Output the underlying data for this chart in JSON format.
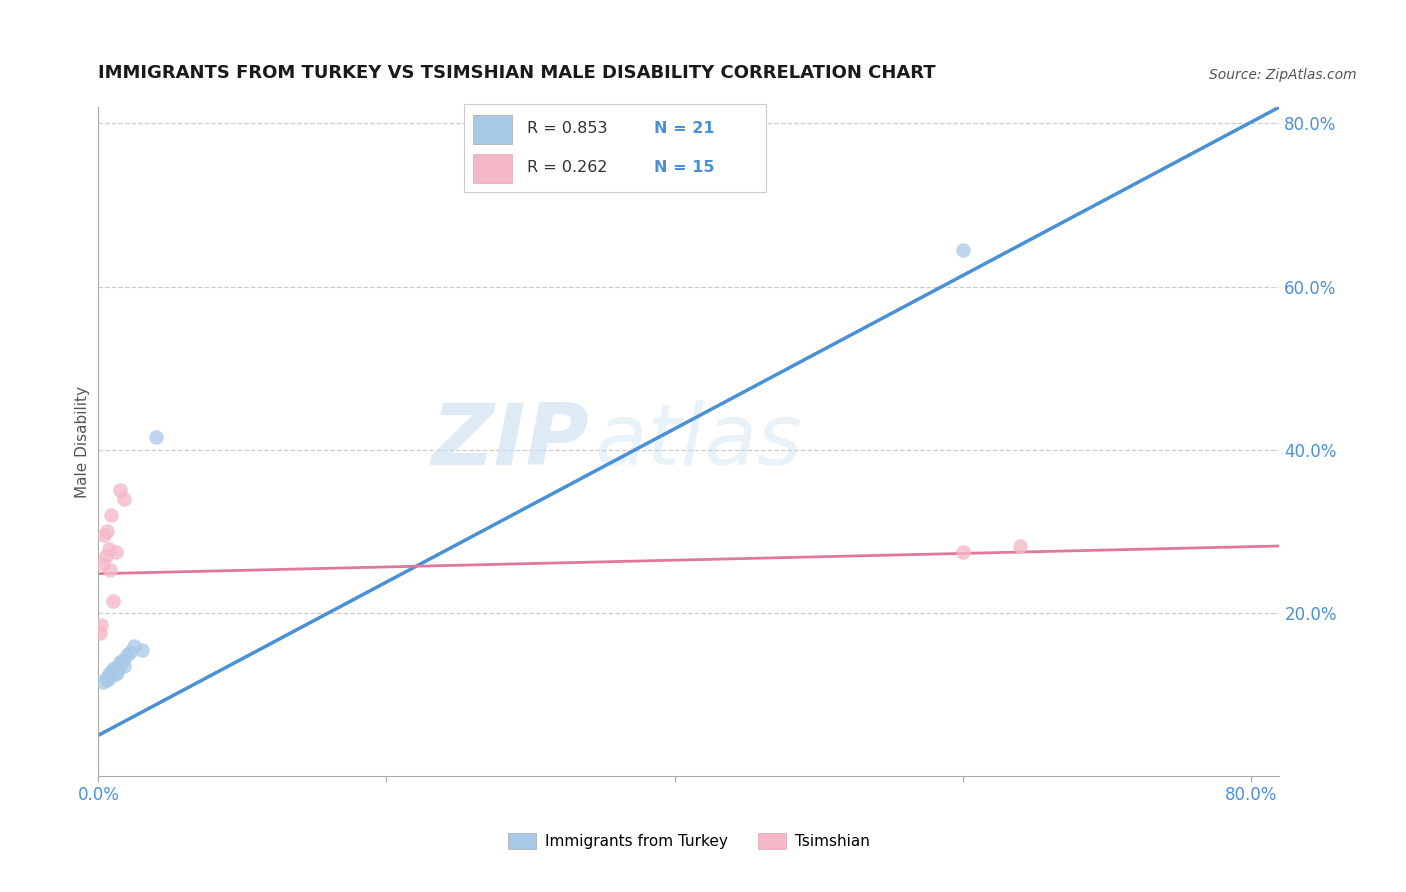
{
  "title": "IMMIGRANTS FROM TURKEY VS TSIMSHIAN MALE DISABILITY CORRELATION CHART",
  "source": "Source: ZipAtlas.com",
  "ylabel": "Male Disability",
  "xlim": [
    0.0,
    0.82
  ],
  "ylim": [
    0.0,
    0.82
  ],
  "grid_yticks": [
    0.2,
    0.4,
    0.6,
    0.8
  ],
  "background_color": "#ffffff",
  "blue_color": "#a8c8e8",
  "pink_color": "#f4b8c8",
  "blue_line_color": "#4a90d9",
  "pink_line_color": "#e07898",
  "blue_scatter_x": [
    0.003,
    0.005,
    0.006,
    0.007,
    0.008,
    0.009,
    0.01,
    0.011,
    0.012,
    0.013,
    0.014,
    0.015,
    0.016,
    0.017,
    0.018,
    0.02,
    0.022,
    0.025,
    0.03,
    0.04,
    0.6
  ],
  "blue_scatter_y": [
    0.115,
    0.12,
    0.118,
    0.125,
    0.122,
    0.128,
    0.13,
    0.132,
    0.125,
    0.128,
    0.135,
    0.14,
    0.138,
    0.142,
    0.135,
    0.148,
    0.152,
    0.16,
    0.155,
    0.415,
    0.645
  ],
  "pink_scatter_x": [
    0.001,
    0.002,
    0.003,
    0.004,
    0.005,
    0.006,
    0.007,
    0.008,
    0.009,
    0.01,
    0.012,
    0.015,
    0.018,
    0.6,
    0.64
  ],
  "pink_scatter_y": [
    0.175,
    0.185,
    0.26,
    0.295,
    0.27,
    0.3,
    0.278,
    0.252,
    0.32,
    0.215,
    0.275,
    0.35,
    0.34,
    0.275,
    0.282
  ],
  "blue_line_x": [
    0.0,
    0.82
  ],
  "blue_line_y": [
    0.05,
    0.82
  ],
  "pink_line_x": [
    0.0,
    0.82
  ],
  "pink_line_y": [
    0.248,
    0.282
  ],
  "legend_blue_r": "R = 0.853",
  "legend_blue_n": "N = 21",
  "legend_pink_r": "R = 0.262",
  "legend_pink_n": "N = 15",
  "bottom_legend_blue": "Immigrants from Turkey",
  "bottom_legend_pink": "Tsimshian"
}
